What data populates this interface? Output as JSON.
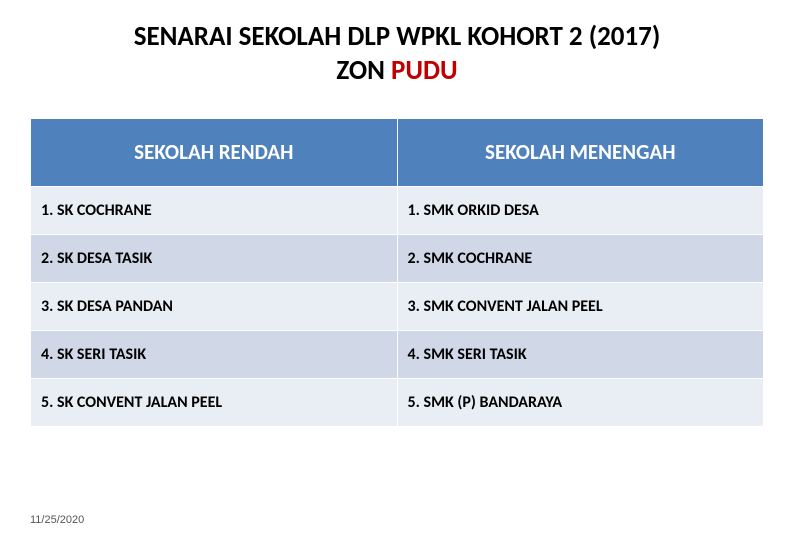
{
  "title": {
    "line1": "SENARAI SEKOLAH DLP WPKL KOHORT 2 (2017)",
    "line2_prefix": "ZON ",
    "line2_highlight": "PUDU"
  },
  "table": {
    "headers": [
      "SEKOLAH RENDAH",
      "SEKOLAH MENENGAH"
    ],
    "rows": [
      [
        "1. SK COCHRANE",
        "1.  SMK ORKID DESA"
      ],
      [
        "2. SK DESA TASIK",
        "2.  SMK COCHRANE"
      ],
      [
        "3. SK DESA PANDAN",
        "3.  SMK CONVENT JALAN PEEL"
      ],
      [
        "4. SK SERI TASIK",
        "4.  SMK SERI TASIK"
      ],
      [
        "5. SK CONVENT JALAN PEEL",
        "5. SMK (P) BANDARAYA"
      ]
    ],
    "header_bg": "#4f81bd",
    "header_fg": "#ffffff",
    "row_odd_bg": "#e9edf4",
    "row_even_bg": "#d0d8e8",
    "cell_fontsize": 16,
    "header_fontsize": 21
  },
  "footer": {
    "date": "11/25/2020"
  },
  "colors": {
    "title_black": "#000000",
    "title_red": "#c00000",
    "page_bg": "#ffffff"
  }
}
